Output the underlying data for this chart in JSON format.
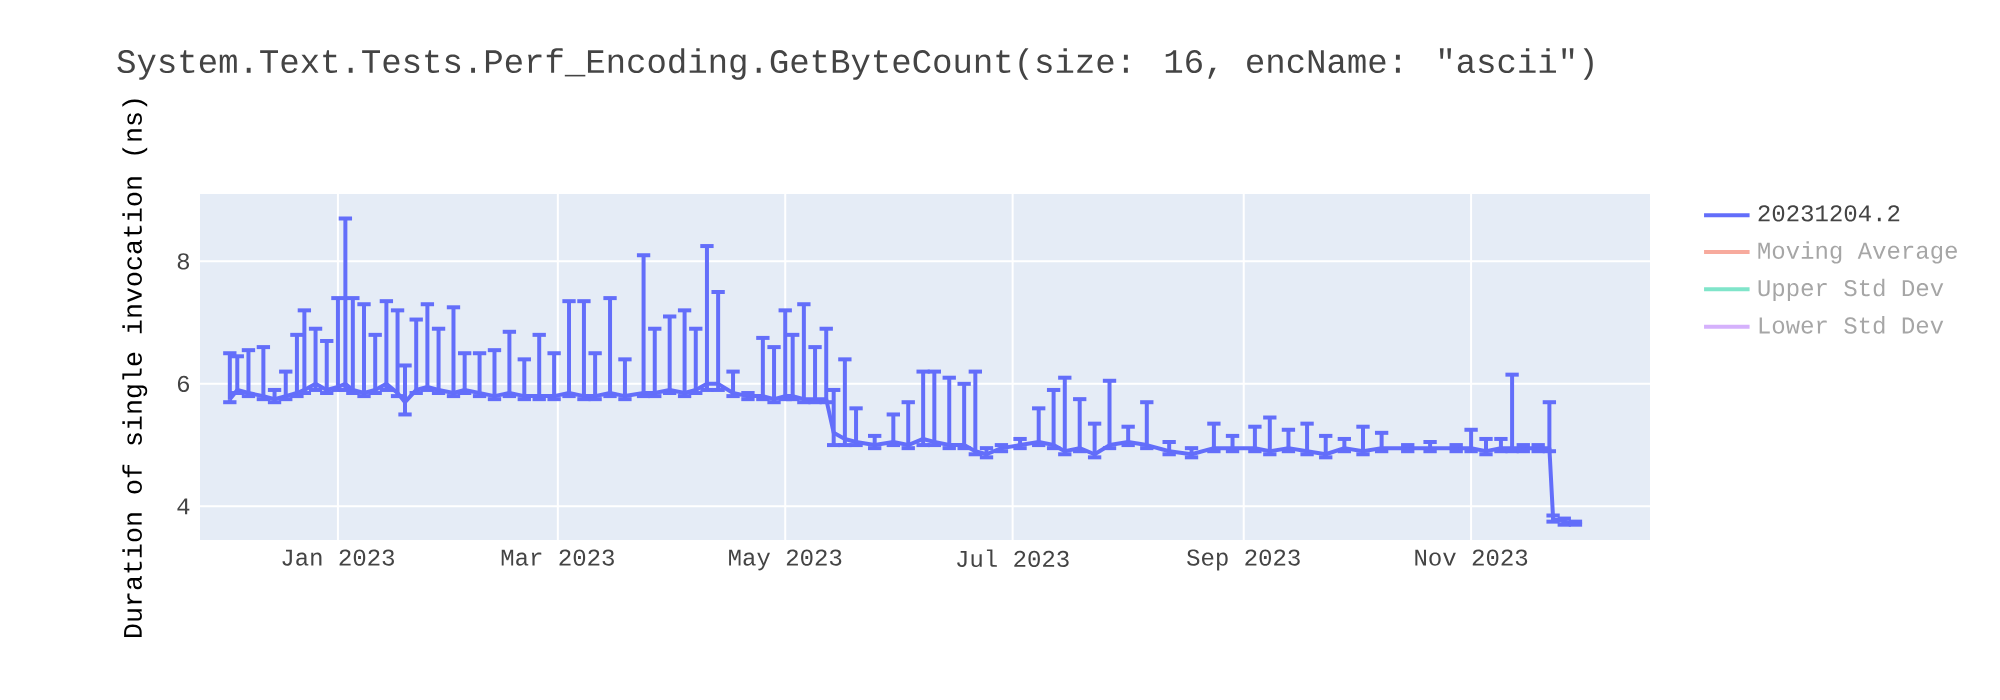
{
  "chart_data": {
    "type": "line",
    "title": "System.Text.Tests.Perf_Encoding.GetByteCount(size: 16, encName: \"ascii\")",
    "ylabel": "Duration of single invocation (ns)",
    "xlim": [
      "2022-11-25",
      "2023-12-19"
    ],
    "ylim": [
      3.45,
      9.1
    ],
    "xticks": [
      {
        "value": "2023-01-01",
        "label": "Jan 2023"
      },
      {
        "value": "2023-03-01",
        "label": "Mar 2023"
      },
      {
        "value": "2023-05-01",
        "label": "May 2023"
      },
      {
        "value": "2023-07-01",
        "label": "Jul 2023"
      },
      {
        "value": "2023-09-01",
        "label": "Sep 2023"
      },
      {
        "value": "2023-11-01",
        "label": "Nov 2023"
      }
    ],
    "yticks": [
      4,
      6,
      8
    ],
    "grid": true,
    "legend": "top right",
    "series": [
      {
        "name": "20231204.2",
        "color": "#636efa",
        "x": [
          "2022-12-03",
          "2022-12-05",
          "2022-12-08",
          "2022-12-12",
          "2022-12-15",
          "2022-12-18",
          "2022-12-21",
          "2022-12-23",
          "2022-12-26",
          "2022-12-29",
          "2023-01-01",
          "2023-01-03",
          "2023-01-05",
          "2023-01-08",
          "2023-01-11",
          "2023-01-14",
          "2023-01-17",
          "2023-01-19",
          "2023-01-22",
          "2023-01-25",
          "2023-01-28",
          "2023-02-01",
          "2023-02-04",
          "2023-02-08",
          "2023-02-12",
          "2023-02-16",
          "2023-02-20",
          "2023-02-24",
          "2023-02-28",
          "2023-03-04",
          "2023-03-08",
          "2023-03-11",
          "2023-03-15",
          "2023-03-19",
          "2023-03-24",
          "2023-03-27",
          "2023-03-31",
          "2023-04-04",
          "2023-04-07",
          "2023-04-10",
          "2023-04-13",
          "2023-04-17",
          "2023-04-21",
          "2023-04-25",
          "2023-04-28",
          "2023-05-01",
          "2023-05-03",
          "2023-05-06",
          "2023-05-09",
          "2023-05-12",
          "2023-05-14",
          "2023-05-17",
          "2023-05-20",
          "2023-05-25",
          "2023-05-30",
          "2023-06-03",
          "2023-06-07",
          "2023-06-10",
          "2023-06-14",
          "2023-06-18",
          "2023-06-21",
          "2023-06-24",
          "2023-06-28",
          "2023-07-03",
          "2023-07-08",
          "2023-07-12",
          "2023-07-15",
          "2023-07-19",
          "2023-07-23",
          "2023-07-27",
          "2023-08-01",
          "2023-08-06",
          "2023-08-12",
          "2023-08-18",
          "2023-08-24",
          "2023-08-29",
          "2023-09-04",
          "2023-09-08",
          "2023-09-13",
          "2023-09-18",
          "2023-09-23",
          "2023-09-28",
          "2023-10-03",
          "2023-10-08",
          "2023-10-15",
          "2023-10-21",
          "2023-10-28",
          "2023-11-01",
          "2023-11-05",
          "2023-11-09",
          "2023-11-12",
          "2023-11-15",
          "2023-11-19",
          "2023-11-22",
          "2023-11-23",
          "2023-11-26",
          "2023-11-29"
        ],
        "values": [
          5.75,
          5.9,
          5.85,
          5.8,
          5.75,
          5.8,
          5.85,
          5.9,
          6.0,
          5.9,
          5.95,
          6.0,
          5.9,
          5.85,
          5.9,
          6.0,
          5.85,
          5.7,
          5.9,
          5.95,
          5.9,
          5.85,
          5.9,
          5.85,
          5.8,
          5.85,
          5.8,
          5.8,
          5.8,
          5.85,
          5.8,
          5.8,
          5.85,
          5.8,
          5.85,
          5.85,
          5.9,
          5.85,
          5.9,
          6.0,
          6.0,
          5.85,
          5.8,
          5.8,
          5.75,
          5.8,
          5.8,
          5.75,
          5.75,
          5.75,
          5.2,
          5.1,
          5.05,
          5.0,
          5.05,
          5.0,
          5.1,
          5.05,
          5.0,
          5.0,
          4.9,
          4.85,
          4.95,
          5.0,
          5.05,
          5.0,
          4.9,
          4.95,
          4.85,
          5.0,
          5.05,
          5.0,
          4.9,
          4.85,
          4.95,
          4.95,
          4.95,
          4.9,
          4.95,
          4.9,
          4.85,
          4.95,
          4.9,
          4.95,
          4.95,
          4.95,
          4.95,
          4.95,
          4.9,
          4.95,
          4.95,
          4.95,
          4.95,
          4.95,
          3.8,
          3.75,
          3.72
        ],
        "errors": [
          [
            5.7,
            6.5
          ],
          [
            5.85,
            6.45
          ],
          [
            5.8,
            6.55
          ],
          [
            5.75,
            6.6
          ],
          [
            5.7,
            5.9
          ],
          [
            5.75,
            6.2
          ],
          [
            5.8,
            6.8
          ],
          [
            5.85,
            7.2
          ],
          [
            5.9,
            6.9
          ],
          [
            5.85,
            6.7
          ],
          [
            5.9,
            7.4
          ],
          [
            5.9,
            8.7
          ],
          [
            5.85,
            7.4
          ],
          [
            5.8,
            7.3
          ],
          [
            5.85,
            6.8
          ],
          [
            5.9,
            7.35
          ],
          [
            5.8,
            7.2
          ],
          [
            5.5,
            6.3
          ],
          [
            5.85,
            7.05
          ],
          [
            5.9,
            7.3
          ],
          [
            5.85,
            6.9
          ],
          [
            5.8,
            7.25
          ],
          [
            5.85,
            6.5
          ],
          [
            5.8,
            6.5
          ],
          [
            5.75,
            6.55
          ],
          [
            5.8,
            6.85
          ],
          [
            5.75,
            6.4
          ],
          [
            5.75,
            6.8
          ],
          [
            5.75,
            6.5
          ],
          [
            5.8,
            7.35
          ],
          [
            5.75,
            7.35
          ],
          [
            5.75,
            6.5
          ],
          [
            5.8,
            7.4
          ],
          [
            5.75,
            6.4
          ],
          [
            5.8,
            8.1
          ],
          [
            5.8,
            6.9
          ],
          [
            5.85,
            7.1
          ],
          [
            5.8,
            7.2
          ],
          [
            5.85,
            6.9
          ],
          [
            5.9,
            8.25
          ],
          [
            5.9,
            7.5
          ],
          [
            5.8,
            6.2
          ],
          [
            5.75,
            5.85
          ],
          [
            5.75,
            6.75
          ],
          [
            5.7,
            6.6
          ],
          [
            5.75,
            7.2
          ],
          [
            5.75,
            6.8
          ],
          [
            5.7,
            7.3
          ],
          [
            5.7,
            6.6
          ],
          [
            5.7,
            6.9
          ],
          [
            5.0,
            5.9
          ],
          [
            5.0,
            6.4
          ],
          [
            5.0,
            5.6
          ],
          [
            4.95,
            5.15
          ],
          [
            5.0,
            5.5
          ],
          [
            4.95,
            5.7
          ],
          [
            5.0,
            6.2
          ],
          [
            5.0,
            6.2
          ],
          [
            4.95,
            6.1
          ],
          [
            4.95,
            6.0
          ],
          [
            4.85,
            6.2
          ],
          [
            4.8,
            4.95
          ],
          [
            4.9,
            5.0
          ],
          [
            4.95,
            5.1
          ],
          [
            5.0,
            5.6
          ],
          [
            4.95,
            5.9
          ],
          [
            4.85,
            6.1
          ],
          [
            4.9,
            5.75
          ],
          [
            4.8,
            5.35
          ],
          [
            4.95,
            6.05
          ],
          [
            5.0,
            5.3
          ],
          [
            4.95,
            5.7
          ],
          [
            4.85,
            5.05
          ],
          [
            4.8,
            4.95
          ],
          [
            4.9,
            5.35
          ],
          [
            4.9,
            5.15
          ],
          [
            4.9,
            5.3
          ],
          [
            4.85,
            5.45
          ],
          [
            4.9,
            5.25
          ],
          [
            4.85,
            5.35
          ],
          [
            4.8,
            5.15
          ],
          [
            4.9,
            5.1
          ],
          [
            4.85,
            5.3
          ],
          [
            4.9,
            5.2
          ],
          [
            4.9,
            5.0
          ],
          [
            4.9,
            5.05
          ],
          [
            4.9,
            5.0
          ],
          [
            4.9,
            5.25
          ],
          [
            4.85,
            5.1
          ],
          [
            4.9,
            5.1
          ],
          [
            4.9,
            6.15
          ],
          [
            4.9,
            5.0
          ],
          [
            4.9,
            5.0
          ],
          [
            4.9,
            5.7
          ],
          [
            3.75,
            3.85
          ],
          [
            3.7,
            3.8
          ],
          [
            3.7,
            3.75
          ]
        ]
      },
      {
        "name": "Moving Average",
        "color": "#f7aa9d"
      },
      {
        "name": "Upper Std Dev",
        "color": "#80e5ca"
      },
      {
        "name": "Lower Std Dev",
        "color": "#d5b1fc"
      }
    ]
  }
}
